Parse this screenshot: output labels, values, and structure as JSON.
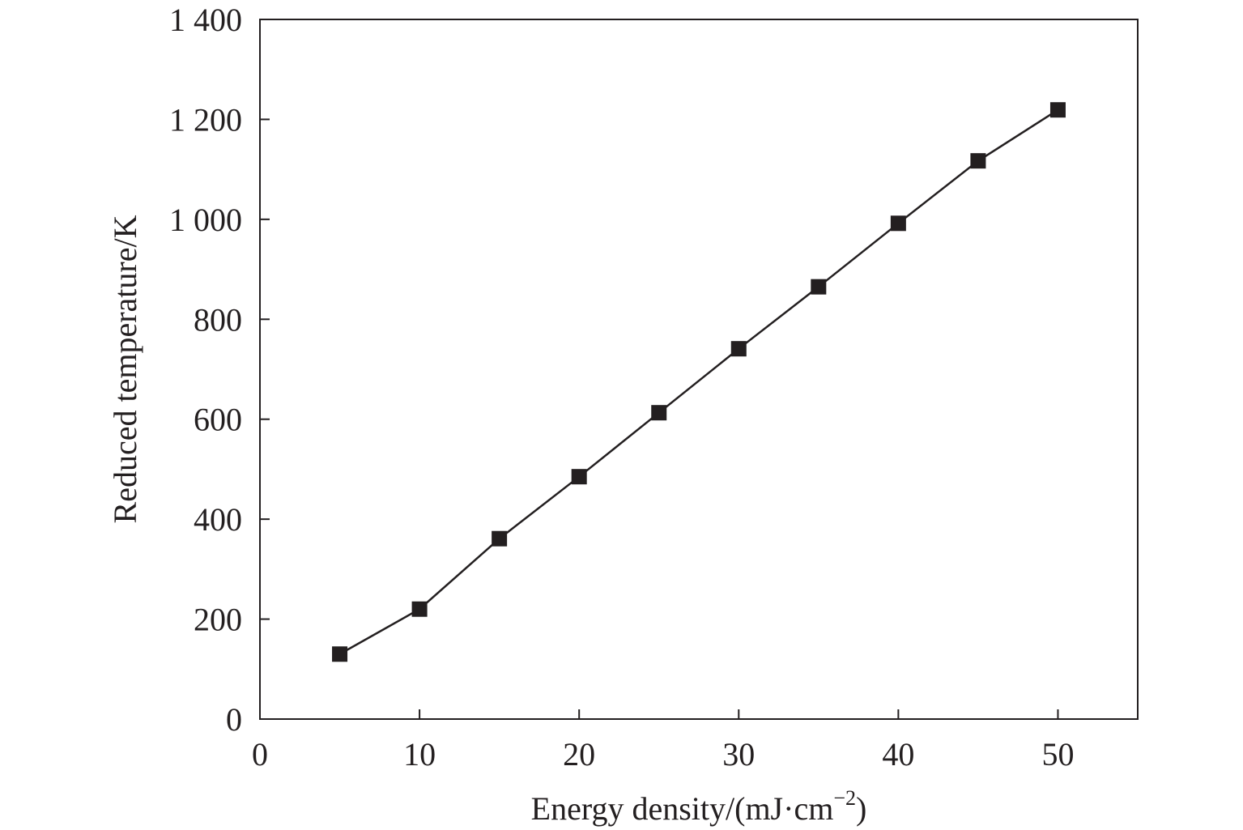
{
  "chart_data": {
    "type": "line",
    "title": "",
    "xlabel": "Energy density/(mJ·cm",
    "xlabel_sup": "−2",
    "xlabel_end": ")",
    "ylabel": "Reduced temperature/K",
    "xlim": [
      0,
      55
    ],
    "ylim": [
      0,
      1400
    ],
    "xticks": [
      0,
      10,
      20,
      30,
      40,
      50
    ],
    "xtick_labels": [
      "0",
      "10",
      "20",
      "30",
      "40",
      "50"
    ],
    "yticks": [
      0,
      200,
      400,
      600,
      800,
      1000,
      1200,
      1400
    ],
    "ytick_labels": [
      "0",
      "200",
      "400",
      "600",
      "800",
      "1 000",
      "1 200",
      "1 400"
    ],
    "grid": false,
    "series": [
      {
        "name": "Reduced temperature",
        "marker": "square",
        "color": "#231f20",
        "x": [
          5,
          10,
          15,
          20,
          25,
          30,
          35,
          40,
          45,
          50
        ],
        "y": [
          130,
          220,
          361,
          485,
          613,
          741,
          865,
          992,
          1117,
          1219
        ]
      }
    ]
  }
}
